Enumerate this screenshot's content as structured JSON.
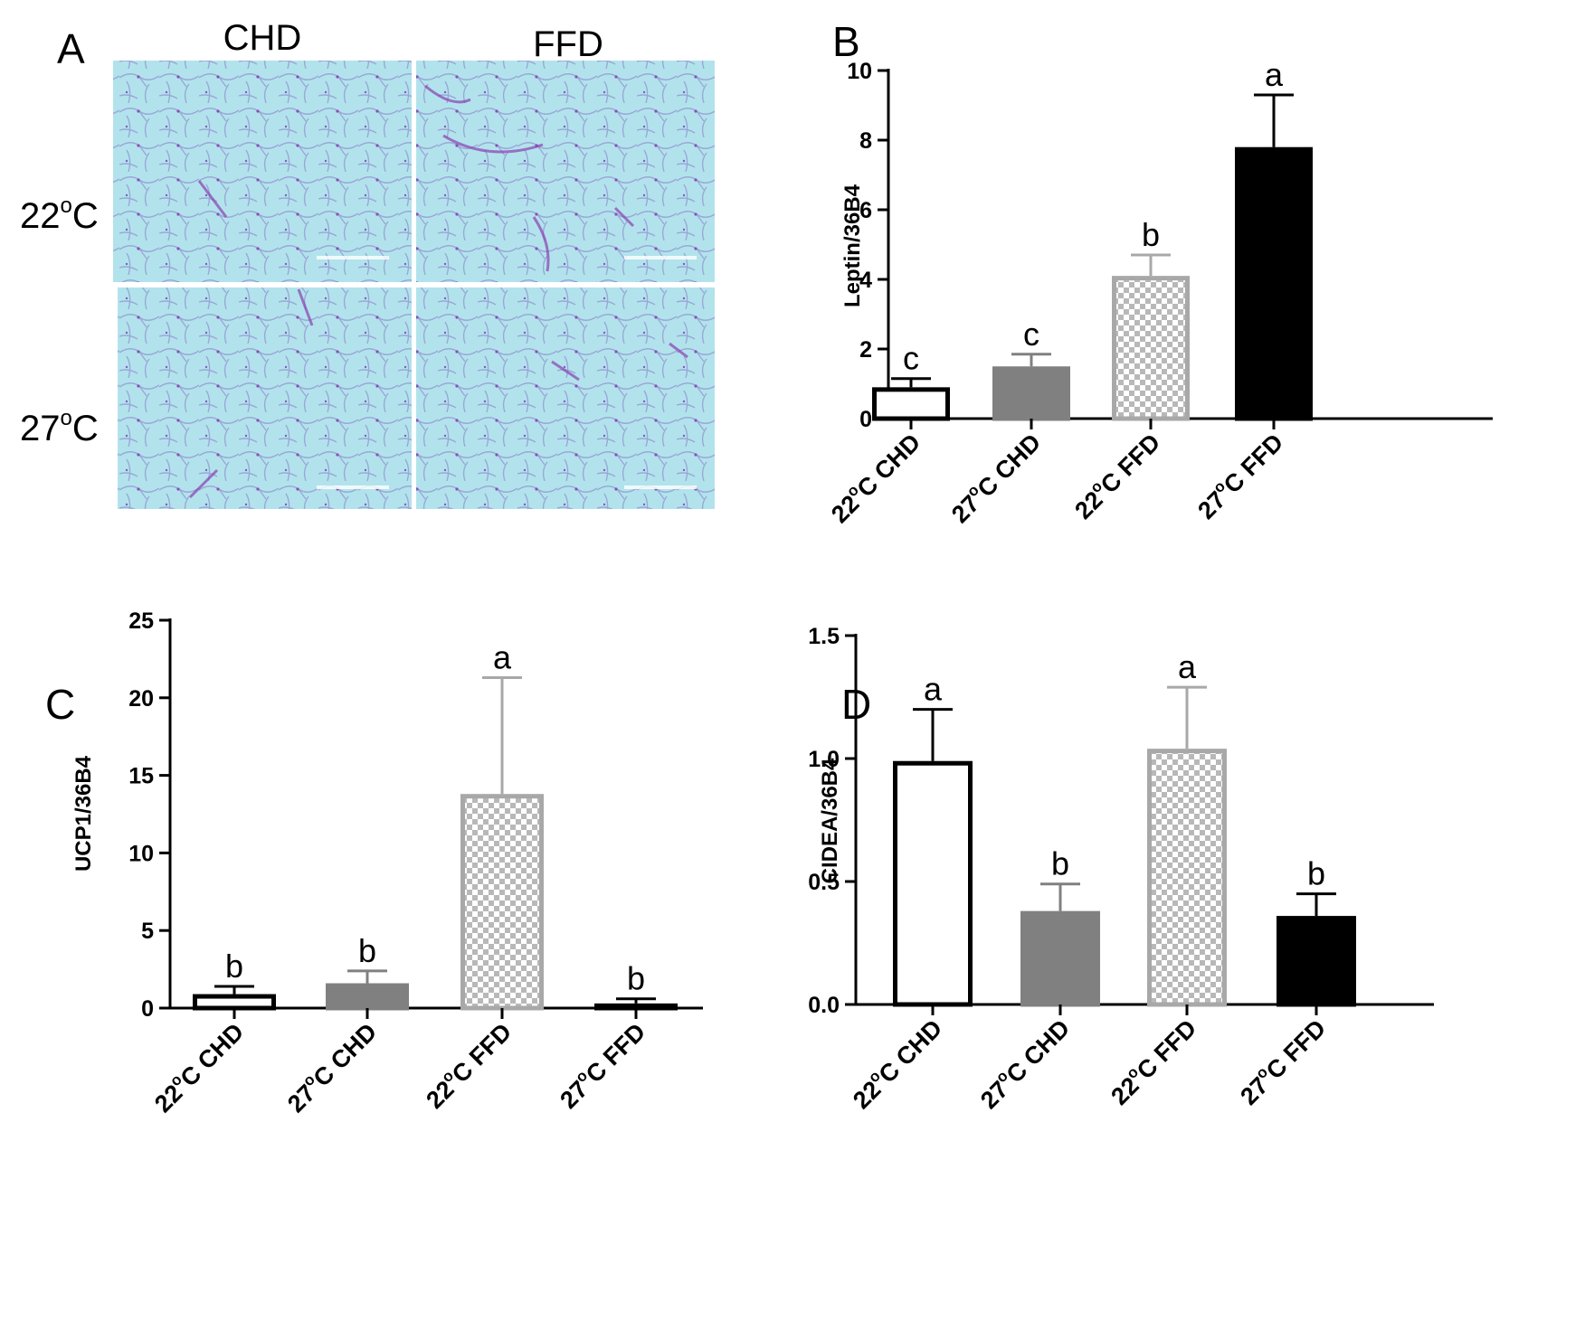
{
  "panel_a": {
    "label": "A",
    "columns": [
      "CHD",
      "FFD"
    ],
    "rows": [
      {
        "sup": "o",
        "label_pre": "22",
        "label_post": "C"
      },
      {
        "sup": "o",
        "label_pre": "27",
        "label_post": "C"
      }
    ]
  },
  "chart_data": [
    {
      "panel": "B",
      "type": "bar",
      "categories": [
        {
          "pre": "22",
          "sup": "o",
          "post": "C CHD"
        },
        {
          "pre": "27",
          "sup": "o",
          "post": "C CHD"
        },
        {
          "pre": "22",
          "sup": "o",
          "post": "C FFD"
        },
        {
          "pre": "27",
          "sup": "o",
          "post": "C FFD"
        }
      ],
      "values": [
        0.9,
        1.5,
        4.1,
        7.8
      ],
      "errors": [
        0.25,
        0.35,
        0.6,
        1.5
      ],
      "sig": [
        "c",
        "c",
        "b",
        "a"
      ],
      "ylabel": "Leptin/36B4",
      "ylim": [
        0,
        10
      ],
      "yticks": [
        "0",
        "2",
        "4",
        "6",
        "8",
        "10"
      ]
    },
    {
      "panel": "C",
      "type": "bar",
      "categories": [
        {
          "pre": "22",
          "sup": "o",
          "post": "C CHD"
        },
        {
          "pre": "27",
          "sup": "o",
          "post": "C CHD"
        },
        {
          "pre": "22",
          "sup": "o",
          "post": "C FFD"
        },
        {
          "pre": "27",
          "sup": "o",
          "post": "C FFD"
        }
      ],
      "values": [
        0.9,
        1.6,
        13.8,
        0.3
      ],
      "errors": [
        0.5,
        0.8,
        7.5,
        0.3
      ],
      "sig": [
        "b",
        "b",
        "a",
        "b"
      ],
      "ylabel": "UCP1/36B4",
      "ylim": [
        0,
        25
      ],
      "yticks": [
        "0",
        "5",
        "10",
        "15",
        "20",
        "25"
      ]
    },
    {
      "panel": "D",
      "type": "bar",
      "categories": [
        {
          "pre": "22",
          "sup": "o",
          "post": "C CHD"
        },
        {
          "pre": "27",
          "sup": "o",
          "post": "C CHD"
        },
        {
          "pre": "22",
          "sup": "o",
          "post": "C FFD"
        },
        {
          "pre": "27",
          "sup": "o",
          "post": "C FFD"
        }
      ],
      "values": [
        0.99,
        0.38,
        1.04,
        0.36
      ],
      "errors": [
        0.21,
        0.11,
        0.25,
        0.09
      ],
      "sig": [
        "a",
        "b",
        "a",
        "b"
      ],
      "ylabel": "CIDEA/36B4",
      "ylim": [
        0,
        1.5
      ],
      "yticks": [
        "0.0",
        "0.5",
        "1.0",
        "1.5"
      ]
    }
  ],
  "bar_styles": [
    {
      "fill": "#ffffff",
      "stroke": "#000000",
      "pattern": "none"
    },
    {
      "fill": "#808080",
      "stroke": "#808080",
      "pattern": "none"
    },
    {
      "fill": "#ffffff",
      "stroke": "#a8a8a8",
      "pattern": "checker"
    },
    {
      "fill": "#000000",
      "stroke": "#000000",
      "pattern": "none"
    }
  ],
  "micrograph_color": "#aee0ea",
  "stain_color": "#8a3fb0"
}
